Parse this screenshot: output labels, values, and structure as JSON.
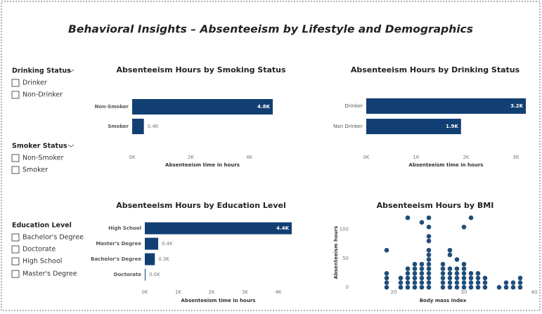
{
  "title": "Behavioral Insights – Absenteeism by Lifestyle and Demographics",
  "slicers": [
    {
      "title": "Drinking Status",
      "items": [
        "Drinker",
        "Non-Drinker"
      ]
    },
    {
      "title": "Smoker Status",
      "items": [
        "Non-Smoker",
        "Smoker"
      ]
    },
    {
      "title": "Education Level",
      "items": [
        "Bachelor's Degree",
        "Doctorate",
        "High School",
        "Master's Degree"
      ]
    }
  ],
  "chart_data": [
    {
      "type": "hbar",
      "title": "Absenteeism Hours by Smoking Status",
      "categories": [
        "Non-Smoker",
        "Smoker"
      ],
      "values": [
        4800,
        400
      ],
      "value_labels": [
        "4.8K",
        "0.4K"
      ],
      "color": "#123f73",
      "xlabel": "Absenteeism time in hours",
      "xlim": [
        0,
        4800
      ],
      "xticks": [
        {
          "value": 0,
          "label": "0K"
        },
        {
          "value": 2000,
          "label": "2K"
        },
        {
          "value": 4000,
          "label": "4K"
        }
      ]
    },
    {
      "type": "hbar",
      "title": "Absenteeism Hours by Drinking Status",
      "categories": [
        "Drinker",
        "Non Drinker"
      ],
      "values": [
        3200,
        1900
      ],
      "value_labels": [
        "3.2K",
        "1.9K"
      ],
      "color": "#123f73",
      "xlabel": "Absenteeism time in hours",
      "xlim": [
        0,
        3200
      ],
      "xticks": [
        {
          "value": 0,
          "label": "0K"
        },
        {
          "value": 1000,
          "label": "1K"
        },
        {
          "value": 2000,
          "label": "2K"
        },
        {
          "value": 3000,
          "label": "3K"
        }
      ]
    },
    {
      "type": "hbar",
      "title": "Absenteeism Hours by Education Level",
      "categories": [
        "High School",
        "Master's Degree",
        "Bachelor's Degree",
        "Doctorate"
      ],
      "values": [
        4400,
        400,
        300,
        20
      ],
      "value_labels": [
        "4.4K",
        "0.4K",
        "0.3K",
        "0.0K"
      ],
      "color": "#123f73",
      "xlabel": "Absenteeism time in hours",
      "xlim": [
        0,
        4400
      ],
      "xticks": [
        {
          "value": 0,
          "label": "0K"
        },
        {
          "value": 1000,
          "label": "1K"
        },
        {
          "value": 2000,
          "label": "2K"
        },
        {
          "value": 3000,
          "label": "3K"
        },
        {
          "value": 4000,
          "label": "4K"
        }
      ]
    },
    {
      "type": "scatter",
      "title": "Absenteeism Hours by BMI",
      "xlabel": "Body mass index",
      "ylabel": "Absenteeism hours",
      "color": "#1f4e79",
      "x": [
        19,
        19,
        19,
        19,
        19,
        21,
        21,
        21,
        22,
        22,
        22,
        22,
        22,
        22,
        23,
        23,
        23,
        23,
        23,
        23,
        24,
        24,
        24,
        24,
        24,
        24,
        24,
        25,
        25,
        25,
        25,
        25,
        25,
        25,
        25,
        25,
        25,
        25,
        25,
        25,
        27,
        27,
        27,
        27,
        27,
        27,
        28,
        28,
        28,
        28,
        28,
        28,
        28,
        29,
        29,
        29,
        29,
        29,
        29,
        30,
        30,
        30,
        30,
        30,
        30,
        30,
        31,
        31,
        31,
        31,
        31,
        32,
        32,
        32,
        32,
        33,
        33,
        33,
        35,
        36,
        36,
        37,
        37,
        38,
        38,
        38
      ],
      "y": [
        0,
        8,
        16,
        24,
        64,
        0,
        8,
        16,
        0,
        8,
        16,
        24,
        32,
        120,
        0,
        8,
        16,
        24,
        32,
        40,
        0,
        8,
        16,
        24,
        32,
        40,
        112,
        0,
        8,
        16,
        24,
        32,
        40,
        48,
        56,
        64,
        80,
        88,
        104,
        120,
        0,
        8,
        16,
        24,
        32,
        40,
        0,
        8,
        16,
        24,
        32,
        56,
        64,
        0,
        8,
        16,
        24,
        32,
        48,
        0,
        8,
        16,
        24,
        32,
        40,
        104,
        0,
        8,
        16,
        24,
        120,
        0,
        8,
        16,
        24,
        0,
        8,
        16,
        0,
        0,
        8,
        0,
        8,
        0,
        8,
        16
      ],
      "xlim": [
        14,
        40
      ],
      "ylim": [
        0,
        120
      ],
      "xticks": [
        20,
        30,
        40
      ],
      "yticks": [
        0,
        50,
        100
      ]
    }
  ]
}
